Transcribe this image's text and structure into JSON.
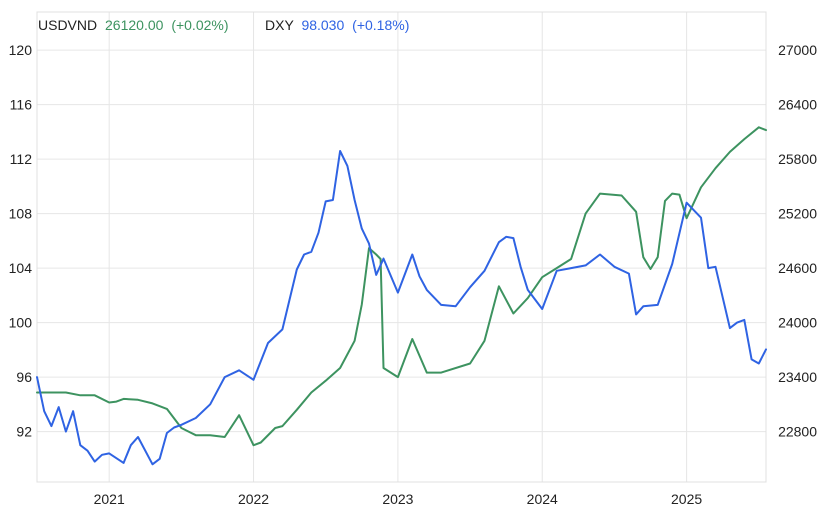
{
  "legend": {
    "usdvnd": {
      "symbol": "USDVND",
      "value": "26120.00",
      "change": "(+0.02%)"
    },
    "dxy": {
      "symbol": "DXY",
      "value": "98.030",
      "change": "(+0.18%)"
    }
  },
  "chart_data": {
    "type": "line",
    "title": "",
    "xlabel": "",
    "ylabel": "",
    "grid": true,
    "legend_placement": "top-left",
    "x_ticks": [
      "2021",
      "2022",
      "2023",
      "2024",
      "2025"
    ],
    "x_tick_positions": [
      2021.0,
      2022.0,
      2023.0,
      2024.0,
      2025.0
    ],
    "xlim": [
      2020.5,
      2025.55
    ],
    "y_left": {
      "ticks": [
        92,
        96,
        100,
        104,
        108,
        112,
        116,
        120
      ],
      "ylim": [
        88.3,
        122.8
      ]
    },
    "y_right": {
      "ticks": [
        22800,
        23400,
        24000,
        24600,
        25200,
        25800,
        26400,
        27000
      ],
      "ylim": [
        22245,
        27420
      ]
    },
    "colors": {
      "usdvnd": "#3d9360",
      "dxy": "#2f63e3"
    },
    "series": [
      {
        "name": "USDVND",
        "axis": "right",
        "x": [
          2020.5,
          2020.6,
          2020.7,
          2020.8,
          2020.9,
          2021.0,
          2021.05,
          2021.1,
          2021.2,
          2021.3,
          2021.4,
          2021.5,
          2021.55,
          2021.6,
          2021.7,
          2021.8,
          2021.9,
          2022.0,
          2022.05,
          2022.15,
          2022.2,
          2022.3,
          2022.4,
          2022.5,
          2022.6,
          2022.7,
          2022.75,
          2022.8,
          2022.85,
          2022.88,
          2022.9,
          2023.0,
          2023.1,
          2023.2,
          2023.3,
          2023.5,
          2023.6,
          2023.7,
          2023.8,
          2023.9,
          2024.0,
          2024.1,
          2024.2,
          2024.3,
          2024.4,
          2024.55,
          2024.65,
          2024.7,
          2024.75,
          2024.8,
          2024.85,
          2024.9,
          2024.95,
          2025.0,
          2025.1,
          2025.2,
          2025.3,
          2025.4,
          2025.5,
          2025.55
        ],
        "values": [
          23230,
          23230,
          23230,
          23200,
          23200,
          23120,
          23130,
          23160,
          23150,
          23110,
          23050,
          22840,
          22800,
          22760,
          22760,
          22740,
          22980,
          22650,
          22680,
          22840,
          22860,
          23040,
          23230,
          23360,
          23500,
          23800,
          24200,
          24820,
          24750,
          24700,
          23500,
          23400,
          23820,
          23450,
          23450,
          23550,
          23800,
          24400,
          24100,
          24270,
          24500,
          24600,
          24700,
          25200,
          25420,
          25400,
          25220,
          24720,
          24590,
          24720,
          25340,
          25420,
          25410,
          25150,
          25490,
          25700,
          25880,
          26020,
          26150,
          26120
        ]
      },
      {
        "name": "DXY",
        "axis": "left",
        "x": [
          2020.5,
          2020.55,
          2020.6,
          2020.65,
          2020.7,
          2020.75,
          2020.8,
          2020.85,
          2020.9,
          2020.95,
          2021.0,
          2021.1,
          2021.15,
          2021.2,
          2021.3,
          2021.35,
          2021.4,
          2021.45,
          2021.5,
          2021.6,
          2021.7,
          2021.8,
          2021.9,
          2022.0,
          2022.1,
          2022.2,
          2022.3,
          2022.35,
          2022.4,
          2022.45,
          2022.5,
          2022.55,
          2022.6,
          2022.65,
          2022.7,
          2022.75,
          2022.8,
          2022.85,
          2022.9,
          2023.0,
          2023.1,
          2023.15,
          2023.2,
          2023.3,
          2023.4,
          2023.5,
          2023.6,
          2023.7,
          2023.75,
          2023.8,
          2023.85,
          2023.9,
          2024.0,
          2024.1,
          2024.2,
          2024.3,
          2024.4,
          2024.5,
          2024.6,
          2024.65,
          2024.7,
          2024.8,
          2024.9,
          2025.0,
          2025.1,
          2025.15,
          2025.2,
          2025.3,
          2025.35,
          2025.4,
          2025.45,
          2025.5,
          2025.55
        ],
        "values": [
          96.0,
          93.5,
          92.4,
          93.8,
          92.0,
          93.5,
          91.0,
          90.6,
          89.8,
          90.3,
          90.4,
          89.7,
          91.0,
          91.6,
          89.6,
          90.0,
          91.9,
          92.3,
          92.5,
          93.0,
          94.0,
          96.0,
          96.5,
          95.8,
          98.5,
          99.5,
          103.9,
          105.0,
          105.2,
          106.6,
          108.9,
          109.0,
          112.6,
          111.5,
          109.0,
          106.9,
          105.8,
          103.5,
          104.7,
          102.2,
          105.0,
          103.4,
          102.4,
          101.3,
          101.2,
          102.6,
          103.8,
          105.9,
          106.3,
          106.2,
          104.1,
          102.4,
          101.0,
          103.8,
          104.0,
          104.2,
          105.0,
          104.1,
          103.6,
          100.6,
          101.2,
          101.3,
          104.3,
          108.8,
          107.7,
          104.0,
          104.1,
          99.6,
          100.0,
          100.2,
          97.3,
          97.0,
          98.03
        ]
      }
    ]
  }
}
